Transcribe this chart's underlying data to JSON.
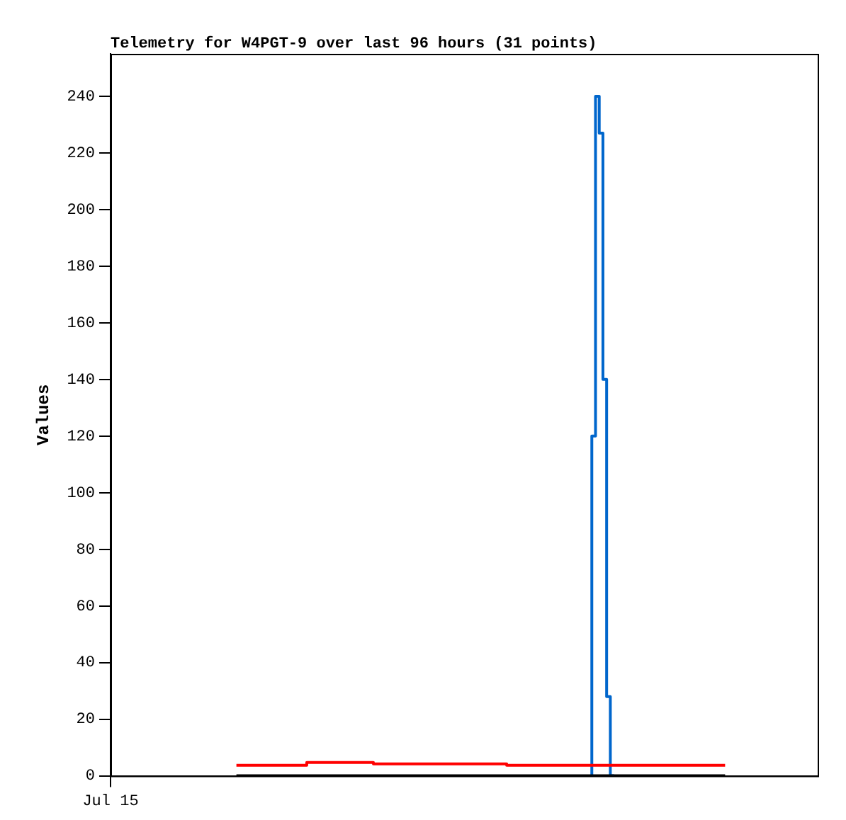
{
  "chart_data": {
    "type": "step",
    "title": "Telemetry for W4PGT-9 over last 96 hours (31 points)",
    "ylabel": "Values",
    "ylim": [
      0,
      255
    ],
    "yticks": [
      0,
      20,
      40,
      60,
      80,
      100,
      120,
      140,
      160,
      180,
      200,
      220,
      240
    ],
    "marker": "none",
    "categories": [
      "Jul 15",
      null,
      null,
      null,
      null,
      null,
      null,
      null,
      null,
      null,
      null,
      null,
      null,
      null,
      null,
      null,
      null,
      null,
      null,
      null,
      null,
      null,
      null,
      null,
      null,
      null,
      null,
      null,
      null,
      null,
      null,
      null,
      null,
      null,
      null,
      null,
      null,
      null,
      null,
      null,
      null,
      null,
      null,
      null,
      null,
      null,
      null,
      null,
      null,
      null,
      null,
      null,
      null,
      null,
      null,
      null,
      null,
      null,
      null,
      null,
      null,
      null,
      null,
      null,
      null,
      null,
      null,
      null,
      null,
      null,
      null,
      null,
      null,
      null,
      null,
      null,
      null,
      null,
      null,
      null,
      null,
      null,
      null,
      null,
      null,
      null,
      null,
      null,
      null,
      null,
      null,
      null,
      null,
      null,
      null,
      null,
      null,
      null,
      null,
      null,
      null,
      null,
      null,
      null,
      null,
      null,
      null,
      null,
      null,
      null,
      null,
      null,
      null,
      null,
      null,
      null,
      null,
      null,
      null,
      null,
      null,
      null,
      null,
      null,
      null,
      null,
      null,
      null,
      null,
      null,
      null,
      null,
      null,
      null,
      null,
      null,
      null,
      null,
      null,
      null,
      null,
      null,
      null,
      null,
      null,
      null,
      null,
      null,
      null,
      null,
      null,
      null,
      null,
      null,
      null,
      null,
      null,
      null,
      null,
      null,
      null,
      null,
      null,
      null,
      null,
      null,
      null,
      null,
      null,
      null,
      null,
      null,
      null,
      null,
      null,
      null,
      null,
      null,
      null,
      null,
      null,
      null,
      null,
      null,
      null,
      null,
      null,
      null,
      null,
      null,
      null,
      null
    ],
    "series": [
      {
        "color": "#ff0000",
        "values": [
          null,
          null,
          null,
          null,
          null,
          null,
          null,
          null,
          null,
          null,
          null,
          null,
          null,
          null,
          null,
          null,
          null,
          null,
          null,
          null,
          null,
          null,
          null,
          null,
          null,
          null,
          null,
          null,
          null,
          null,
          null,
          null,
          null,
          null,
          3.7,
          3.7,
          3.7,
          3.7,
          3.7,
          3.7,
          3.7,
          3.7,
          3.7,
          3.7,
          3.7,
          3.7,
          3.7,
          3.7,
          3.7,
          3.7,
          3.7,
          3.7,
          3.7,
          3.7,
          4.7,
          4.7,
          4.7,
          4.7,
          4.7,
          4.7,
          4.7,
          4.7,
          4.7,
          4.7,
          4.7,
          4.7,
          4.7,
          4.7,
          4.7,
          4.7,
          4.7,
          4.7,
          4.2,
          4.2,
          4.2,
          4.2,
          4.2,
          4.2,
          4.2,
          4.2,
          4.2,
          4.2,
          4.2,
          4.2,
          4.2,
          4.2,
          4.2,
          4.2,
          4.2,
          4.2,
          4.2,
          4.2,
          4.2,
          4.2,
          4.2,
          4.2,
          4.2,
          4.2,
          4.2,
          4.2,
          4.2,
          4.2,
          4.2,
          4.2,
          4.2,
          4.2,
          4.2,
          4.2,
          3.7,
          3.7,
          3.7,
          3.7,
          3.7,
          3.7,
          3.7,
          3.7,
          3.7,
          3.7,
          3.7,
          3.7,
          3.7,
          3.7,
          3.7,
          3.7,
          3.7,
          3.7,
          3.7,
          3.7,
          3.7,
          3.7,
          3.7,
          3.7,
          3.7,
          3.7,
          3.7,
          3.7,
          3.7,
          3.7,
          3.7,
          3.7,
          3.7,
          3.7,
          3.7,
          3.7,
          3.7,
          3.7,
          3.7,
          3.7,
          3.7,
          3.7,
          3.7,
          3.7,
          3.7,
          3.7,
          3.7,
          3.7,
          3.7,
          3.7,
          3.7,
          3.7,
          3.7,
          3.7,
          3.7,
          3.7,
          3.7,
          3.7,
          3.7,
          null,
          null,
          null,
          null,
          null,
          null,
          null,
          null,
          null,
          null,
          null,
          null,
          null,
          null,
          null,
          null,
          null,
          null,
          null,
          null,
          null,
          null,
          null,
          null,
          null
        ]
      },
      {
        "color": "#000000",
        "values": [
          null,
          null,
          null,
          null,
          null,
          null,
          null,
          null,
          null,
          null,
          null,
          null,
          null,
          null,
          null,
          null,
          null,
          null,
          null,
          null,
          null,
          null,
          null,
          null,
          null,
          null,
          null,
          null,
          null,
          null,
          null,
          null,
          null,
          null,
          0,
          0,
          0,
          0,
          0,
          0,
          0,
          0,
          0,
          0,
          0,
          0,
          0,
          0,
          0,
          0,
          0,
          0,
          0,
          0,
          0,
          0,
          0,
          0,
          0,
          0,
          0,
          0,
          0,
          0,
          0,
          0,
          0,
          0,
          0,
          0,
          0,
          0,
          0,
          0,
          0,
          0,
          0,
          0,
          0,
          0,
          0,
          0,
          0,
          0,
          0,
          0,
          0,
          0,
          0,
          0,
          0,
          0,
          0,
          0,
          0,
          0,
          0,
          0,
          0,
          0,
          0,
          0,
          0,
          0,
          0,
          0,
          0,
          0,
          0,
          0,
          0,
          0,
          0,
          0,
          0,
          0,
          0,
          0,
          0,
          0,
          0,
          0,
          0,
          0,
          0,
          0,
          0,
          0,
          0,
          0,
          0,
          0,
          0,
          0,
          0,
          0,
          0,
          0,
          0,
          0,
          0,
          0,
          0,
          0,
          0,
          0,
          0,
          0,
          0,
          0,
          0,
          0,
          0,
          0,
          0,
          0,
          0,
          0,
          0,
          0,
          0,
          0,
          0,
          0,
          0,
          0,
          0,
          null,
          null,
          null,
          null,
          null,
          null,
          null,
          null,
          null,
          null,
          null,
          null,
          null,
          null,
          null,
          null,
          null,
          null,
          null,
          null,
          null,
          null,
          null,
          null,
          null
        ]
      },
      {
        "color": "#0066cc",
        "values": [
          null,
          null,
          null,
          null,
          null,
          null,
          null,
          null,
          null,
          null,
          null,
          null,
          null,
          null,
          null,
          null,
          null,
          null,
          null,
          null,
          null,
          null,
          null,
          null,
          null,
          null,
          null,
          null,
          null,
          null,
          null,
          null,
          null,
          null,
          null,
          null,
          null,
          null,
          null,
          null,
          null,
          null,
          null,
          null,
          null,
          null,
          null,
          null,
          null,
          null,
          null,
          null,
          null,
          null,
          null,
          null,
          null,
          null,
          null,
          null,
          null,
          null,
          null,
          null,
          null,
          null,
          null,
          null,
          null,
          null,
          null,
          null,
          null,
          null,
          null,
          null,
          null,
          null,
          null,
          null,
          null,
          null,
          null,
          null,
          null,
          null,
          null,
          null,
          null,
          null,
          null,
          null,
          null,
          null,
          null,
          null,
          null,
          null,
          null,
          null,
          null,
          null,
          null,
          null,
          null,
          null,
          null,
          null,
          null,
          null,
          null,
          null,
          null,
          null,
          null,
          null,
          null,
          null,
          null,
          null,
          null,
          null,
          null,
          null,
          null,
          null,
          null,
          null,
          null,
          null,
          0,
          120,
          240,
          227,
          140,
          28,
          0,
          null,
          null,
          null,
          null,
          null,
          null,
          null,
          null,
          null,
          null,
          null,
          null,
          null,
          null,
          null,
          null,
          null,
          null,
          null,
          null,
          null,
          null,
          null,
          null,
          null,
          null,
          null,
          null,
          null,
          null,
          null,
          null,
          null,
          null,
          null,
          null,
          null,
          null,
          null,
          null,
          null,
          null,
          null,
          null,
          null,
          null,
          null,
          null,
          null,
          null,
          null,
          null,
          null,
          null,
          null
        ]
      }
    ]
  }
}
